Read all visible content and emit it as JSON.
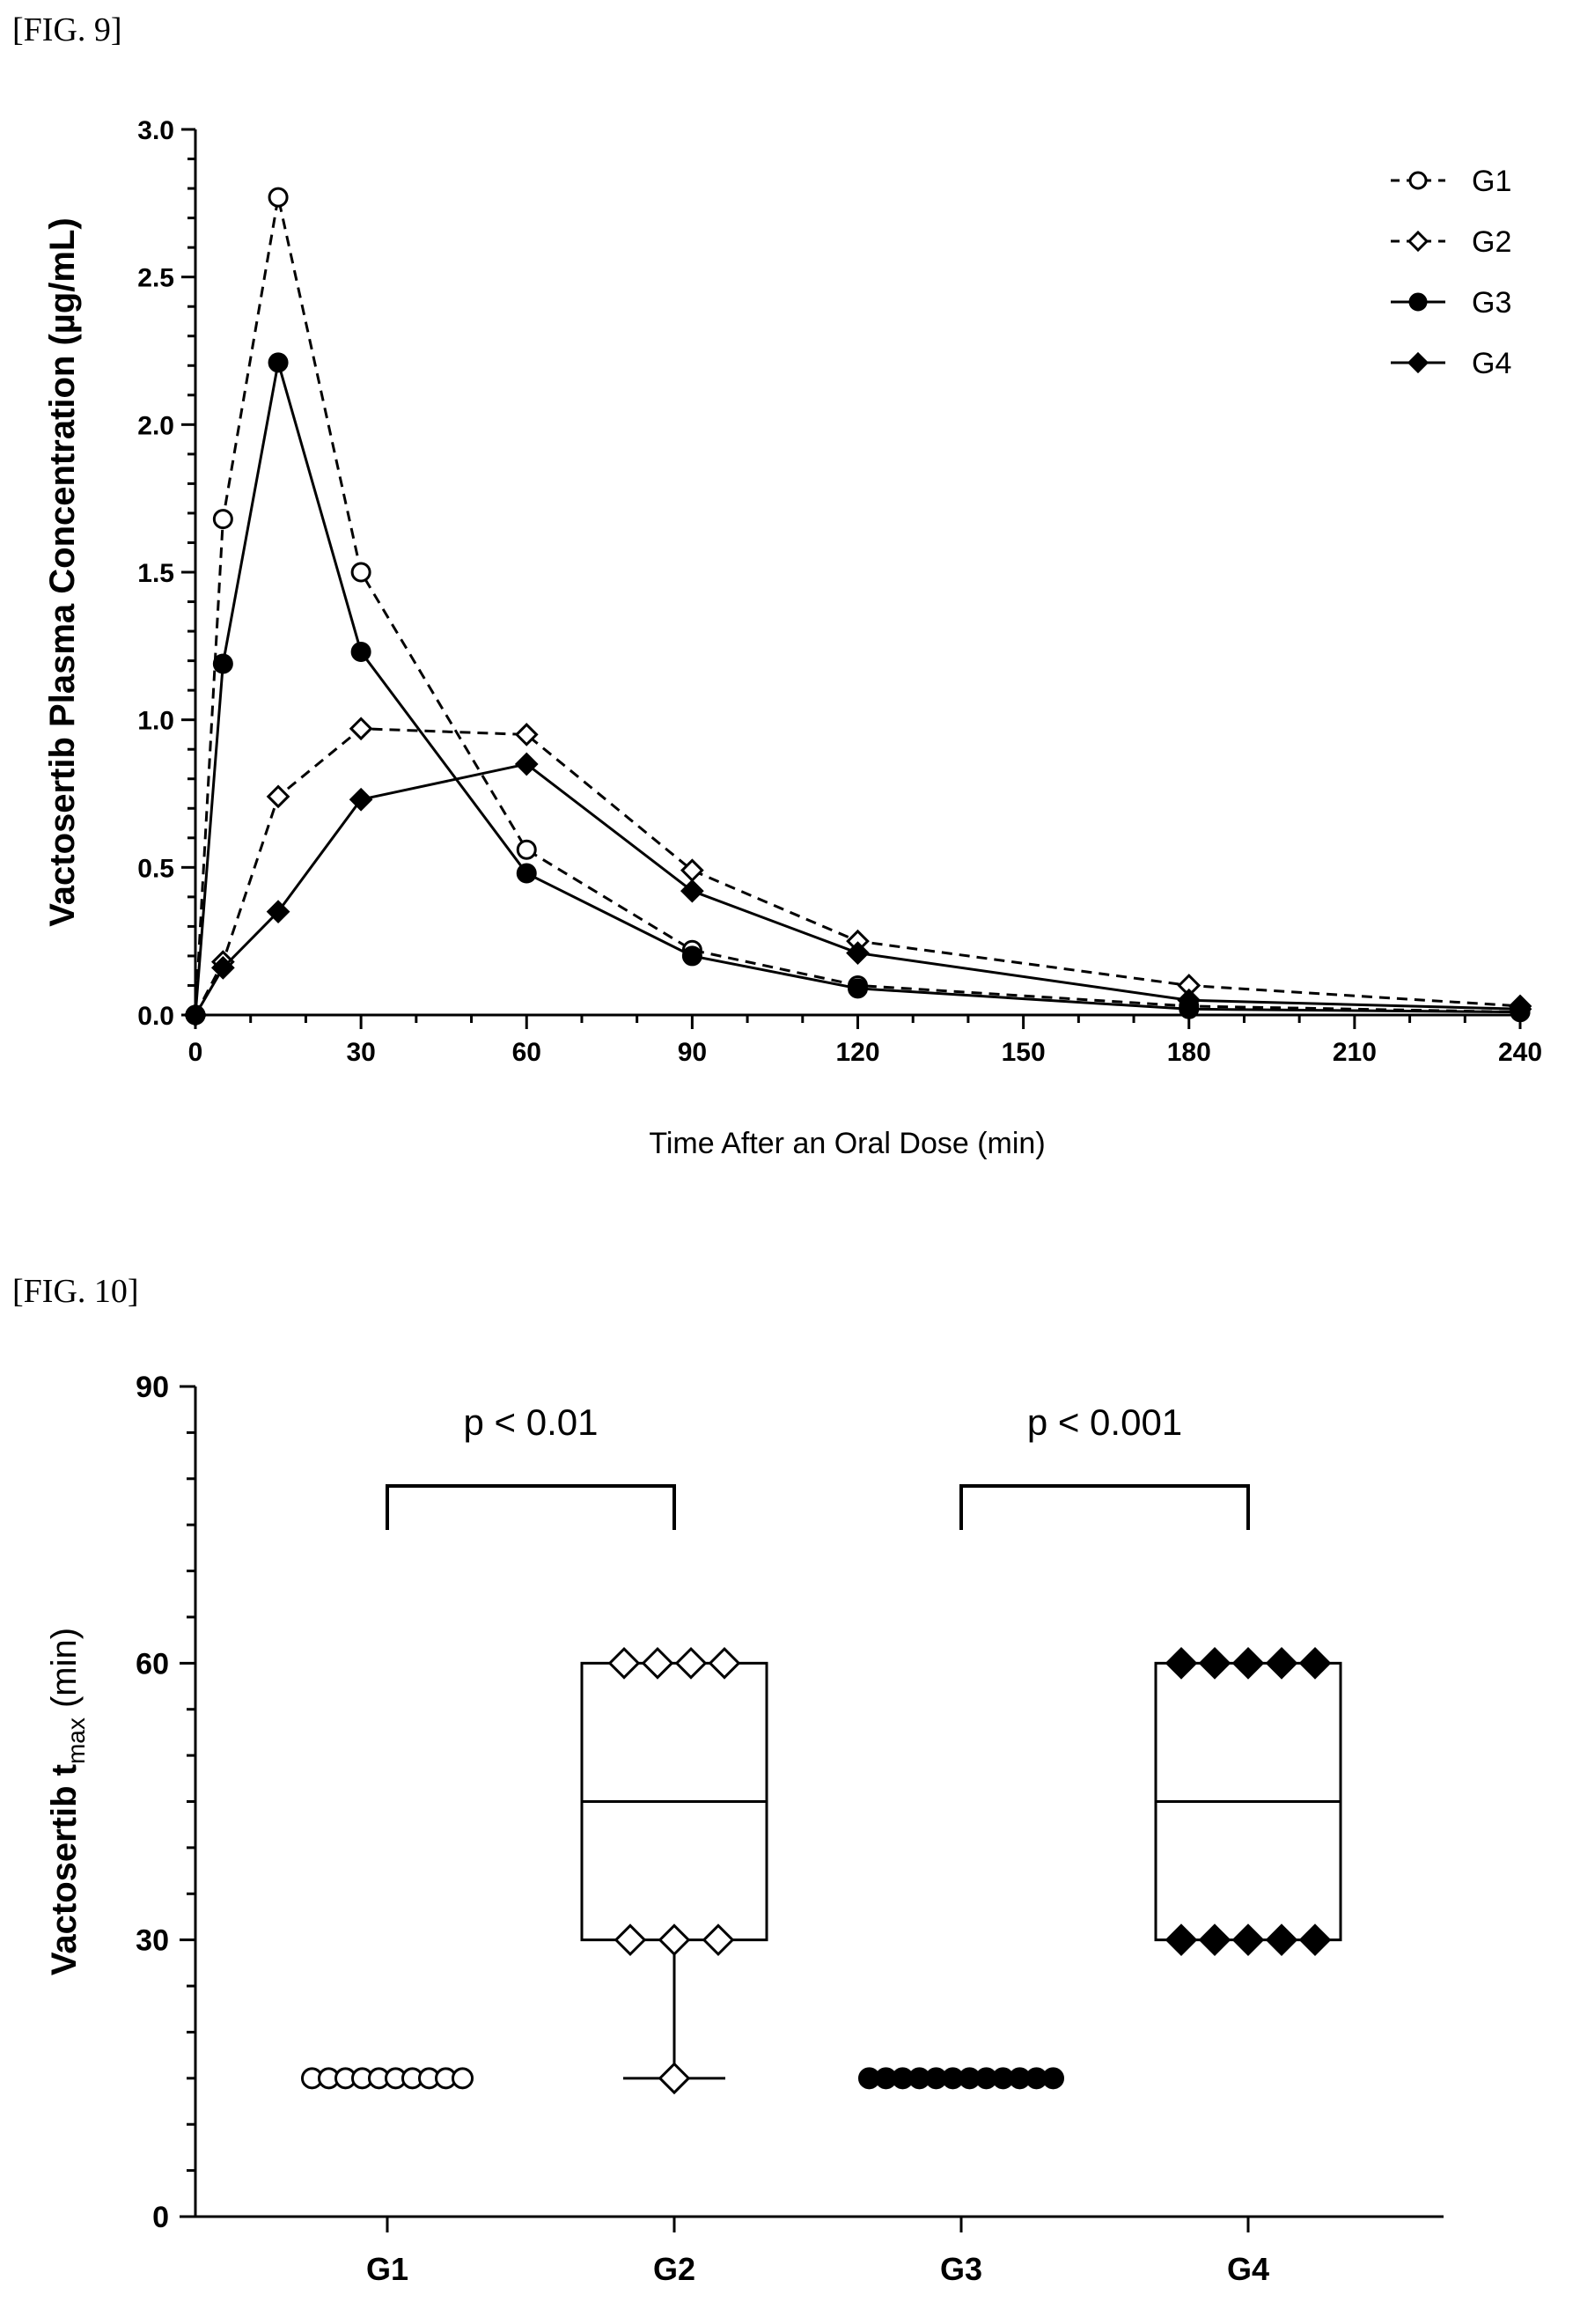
{
  "figures": {
    "fig9_label": "[FIG. 9]",
    "fig10_label": "[FIG. 10]"
  },
  "chart_data": [
    {
      "type": "line",
      "ylabel": "Vactosertib Plasma Concentration (µg/mL)",
      "xlabel": "Time After an Oral Dose (min)",
      "xlim": [
        0,
        240
      ],
      "ylim": [
        0,
        3.0
      ],
      "x_ticks": [
        0,
        30,
        60,
        90,
        120,
        150,
        180,
        210,
        240
      ],
      "y_ticks": [
        "0.0",
        "0.5",
        "1.0",
        "1.5",
        "2.0",
        "2.5",
        "3.0"
      ],
      "legend_position": "top-right",
      "x": [
        0,
        5,
        15,
        30,
        60,
        90,
        120,
        180,
        240
      ],
      "series": [
        {
          "name": "G1",
          "marker": "open-circle",
          "line": "dashed",
          "values": [
            0,
            1.68,
            2.77,
            1.5,
            0.56,
            0.22,
            0.1,
            0.03,
            0.01
          ]
        },
        {
          "name": "G2",
          "marker": "open-diamond",
          "line": "dashed",
          "values": [
            0,
            0.18,
            0.74,
            0.97,
            0.95,
            0.49,
            0.25,
            0.1,
            0.03
          ]
        },
        {
          "name": "G3",
          "marker": "filled-circle",
          "line": "solid",
          "values": [
            0,
            1.19,
            2.21,
            1.23,
            0.48,
            0.2,
            0.09,
            0.02,
            0.01
          ]
        },
        {
          "name": "G4",
          "marker": "filled-diamond",
          "line": "solid",
          "values": [
            0,
            0.16,
            0.35,
            0.73,
            0.85,
            0.42,
            0.21,
            0.05,
            0.02
          ]
        }
      ]
    },
    {
      "type": "box",
      "ylabel_main": "Vactosertib t",
      "ylabel_sub": "max",
      "ylabel_unit": " (min)",
      "ylim": [
        0,
        90
      ],
      "y_ticks": [
        "0",
        "30",
        "60",
        "90"
      ],
      "categories": [
        "G1",
        "G2",
        "G3",
        "G4"
      ],
      "groups": [
        {
          "name": "G1",
          "marker": "open-circle",
          "points": [
            15,
            15,
            15,
            15,
            15,
            15,
            15,
            15,
            15,
            15
          ],
          "box": null
        },
        {
          "name": "G2",
          "marker": "open-diamond",
          "points": [
            60,
            60,
            60,
            60,
            30,
            30,
            30,
            15
          ],
          "box": {
            "min": 15,
            "q1": 30,
            "median": 45,
            "q3": 60,
            "max": 60
          }
        },
        {
          "name": "G3",
          "marker": "filled-circle",
          "points": [
            15,
            15,
            15,
            15,
            15,
            15,
            15,
            15,
            15,
            15,
            15,
            15
          ],
          "box": null
        },
        {
          "name": "G4",
          "marker": "filled-diamond",
          "points": [
            60,
            60,
            60,
            60,
            60,
            30,
            30,
            30,
            30,
            30
          ],
          "box": {
            "min": 30,
            "q1": 30,
            "median": 45,
            "q3": 60,
            "max": 60
          }
        }
      ],
      "comparisons": [
        {
          "from": "G1",
          "to": "G2",
          "label": "p < 0.01"
        },
        {
          "from": "G3",
          "to": "G4",
          "label": "p < 0.001"
        }
      ]
    }
  ]
}
